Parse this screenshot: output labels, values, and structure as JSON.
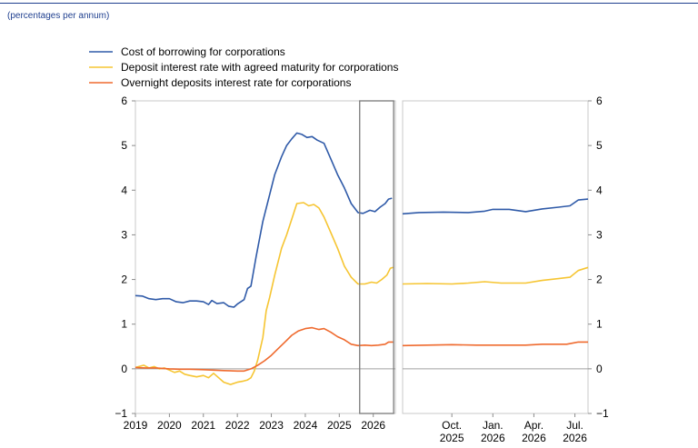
{
  "subtitle": "(percentages per annum)",
  "chart_data": {
    "type": "line",
    "ylim": [
      -1,
      6
    ],
    "yticks": [
      "−1",
      "0",
      "1",
      "2",
      "3",
      "4",
      "5",
      "6"
    ],
    "grid": false,
    "legend_placement": "top-left",
    "colors": {
      "borrowing": "#2f5aa8",
      "deposit": "#f6c532",
      "overnight": "#ef6a2e",
      "axis": "#8c8c8c"
    },
    "left_panel": {
      "x_range": [
        2019.0,
        2026.65
      ],
      "xticks": [
        "2019",
        "2020",
        "2021",
        "2022",
        "2023",
        "2024",
        "2025",
        "2026"
      ],
      "highlight_box": {
        "x_from": 2025.6,
        "x_to": 2026.6,
        "y_from": -1,
        "y_to": 6
      },
      "series": [
        {
          "name": "Cost of borrowing for corporations",
          "color": "#2f5aa8",
          "points": [
            [
              2019.0,
              1.64
            ],
            [
              2019.2,
              1.63
            ],
            [
              2019.4,
              1.57
            ],
            [
              2019.6,
              1.55
            ],
            [
              2019.8,
              1.57
            ],
            [
              2020.0,
              1.57
            ],
            [
              2020.2,
              1.5
            ],
            [
              2020.4,
              1.48
            ],
            [
              2020.6,
              1.52
            ],
            [
              2020.8,
              1.52
            ],
            [
              2021.0,
              1.5
            ],
            [
              2021.15,
              1.44
            ],
            [
              2021.25,
              1.53
            ],
            [
              2021.4,
              1.46
            ],
            [
              2021.6,
              1.48
            ],
            [
              2021.75,
              1.4
            ],
            [
              2021.9,
              1.38
            ],
            [
              2022.0,
              1.45
            ],
            [
              2022.2,
              1.55
            ],
            [
              2022.3,
              1.8
            ],
            [
              2022.4,
              1.85
            ],
            [
              2022.55,
              2.5
            ],
            [
              2022.75,
              3.3
            ],
            [
              2022.95,
              3.9
            ],
            [
              2023.1,
              4.35
            ],
            [
              2023.3,
              4.75
            ],
            [
              2023.45,
              5.0
            ],
            [
              2023.6,
              5.15
            ],
            [
              2023.75,
              5.28
            ],
            [
              2023.9,
              5.25
            ],
            [
              2024.05,
              5.18
            ],
            [
              2024.2,
              5.2
            ],
            [
              2024.35,
              5.12
            ],
            [
              2024.55,
              5.05
            ],
            [
              2024.75,
              4.7
            ],
            [
              2024.95,
              4.35
            ],
            [
              2025.15,
              4.05
            ],
            [
              2025.35,
              3.7
            ],
            [
              2025.55,
              3.5
            ],
            [
              2025.7,
              3.48
            ],
            [
              2025.9,
              3.55
            ],
            [
              2026.05,
              3.52
            ],
            [
              2026.2,
              3.62
            ],
            [
              2026.35,
              3.7
            ],
            [
              2026.45,
              3.8
            ],
            [
              2026.55,
              3.82
            ]
          ]
        },
        {
          "name": "Deposit interest rate with agreed maturity for corporations",
          "color": "#f6c532",
          "points": [
            [
              2019.0,
              0.03
            ],
            [
              2019.1,
              0.05
            ],
            [
              2019.25,
              0.08
            ],
            [
              2019.4,
              0.02
            ],
            [
              2019.55,
              0.05
            ],
            [
              2019.7,
              0.0
            ],
            [
              2019.85,
              0.02
            ],
            [
              2020.0,
              -0.03
            ],
            [
              2020.15,
              -0.08
            ],
            [
              2020.3,
              -0.05
            ],
            [
              2020.45,
              -0.12
            ],
            [
              2020.6,
              -0.15
            ],
            [
              2020.8,
              -0.18
            ],
            [
              2021.0,
              -0.15
            ],
            [
              2021.15,
              -0.2
            ],
            [
              2021.3,
              -0.1
            ],
            [
              2021.45,
              -0.2
            ],
            [
              2021.6,
              -0.3
            ],
            [
              2021.8,
              -0.35
            ],
            [
              2022.0,
              -0.3
            ],
            [
              2022.15,
              -0.28
            ],
            [
              2022.3,
              -0.25
            ],
            [
              2022.4,
              -0.2
            ],
            [
              2022.5,
              -0.05
            ],
            [
              2022.6,
              0.2
            ],
            [
              2022.75,
              0.7
            ],
            [
              2022.85,
              1.3
            ],
            [
              2022.95,
              1.6
            ],
            [
              2023.1,
              2.1
            ],
            [
              2023.3,
              2.7
            ],
            [
              2023.45,
              3.0
            ],
            [
              2023.6,
              3.35
            ],
            [
              2023.75,
              3.7
            ],
            [
              2023.95,
              3.72
            ],
            [
              2024.1,
              3.65
            ],
            [
              2024.25,
              3.68
            ],
            [
              2024.4,
              3.6
            ],
            [
              2024.55,
              3.4
            ],
            [
              2024.75,
              3.05
            ],
            [
              2024.95,
              2.7
            ],
            [
              2025.15,
              2.3
            ],
            [
              2025.35,
              2.05
            ],
            [
              2025.55,
              1.9
            ],
            [
              2025.75,
              1.9
            ],
            [
              2025.95,
              1.94
            ],
            [
              2026.1,
              1.92
            ],
            [
              2026.25,
              2.0
            ],
            [
              2026.4,
              2.1
            ],
            [
              2026.5,
              2.25
            ],
            [
              2026.58,
              2.27
            ]
          ]
        },
        {
          "name": "Overnight deposits interest rate for corporations",
          "color": "#ef6a2e",
          "points": [
            [
              2019.0,
              0.03
            ],
            [
              2019.3,
              0.02
            ],
            [
              2019.6,
              0.02
            ],
            [
              2020.0,
              0.0
            ],
            [
              2020.3,
              -0.01
            ],
            [
              2020.6,
              -0.01
            ],
            [
              2021.0,
              -0.02
            ],
            [
              2021.3,
              -0.03
            ],
            [
              2021.6,
              -0.04
            ],
            [
              2022.0,
              -0.05
            ],
            [
              2022.2,
              -0.05
            ],
            [
              2022.4,
              0.0
            ],
            [
              2022.6,
              0.08
            ],
            [
              2022.8,
              0.18
            ],
            [
              2023.0,
              0.3
            ],
            [
              2023.2,
              0.45
            ],
            [
              2023.4,
              0.6
            ],
            [
              2023.6,
              0.75
            ],
            [
              2023.8,
              0.85
            ],
            [
              2024.0,
              0.9
            ],
            [
              2024.2,
              0.92
            ],
            [
              2024.4,
              0.88
            ],
            [
              2024.55,
              0.9
            ],
            [
              2024.75,
              0.82
            ],
            [
              2024.95,
              0.72
            ],
            [
              2025.15,
              0.65
            ],
            [
              2025.35,
              0.55
            ],
            [
              2025.55,
              0.52
            ],
            [
              2025.75,
              0.53
            ],
            [
              2025.95,
              0.52
            ],
            [
              2026.15,
              0.53
            ],
            [
              2026.35,
              0.55
            ],
            [
              2026.45,
              0.6
            ],
            [
              2026.58,
              0.6
            ]
          ]
        }
      ]
    },
    "right_panel": {
      "x_range": [
        2025.45,
        2026.58
      ],
      "xticks": [
        {
          "at": 2025.75,
          "line1": "Oct.",
          "line2": "2025"
        },
        {
          "at": 2026.0,
          "line1": "Jan.",
          "line2": "2026"
        },
        {
          "at": 2026.25,
          "line1": "Apr.",
          "line2": "2026"
        },
        {
          "at": 2026.5,
          "line1": "Jul.",
          "line2": "2026"
        }
      ],
      "series": [
        {
          "name": "Cost of borrowing for corporations",
          "color": "#2f5aa8",
          "points": [
            [
              2025.45,
              3.47
            ],
            [
              2025.55,
              3.5
            ],
            [
              2025.7,
              3.51
            ],
            [
              2025.85,
              3.5
            ],
            [
              2025.95,
              3.53
            ],
            [
              2026.0,
              3.57
            ],
            [
              2026.1,
              3.57
            ],
            [
              2026.2,
              3.52
            ],
            [
              2026.3,
              3.58
            ],
            [
              2026.4,
              3.62
            ],
            [
              2026.47,
              3.65
            ],
            [
              2026.52,
              3.78
            ],
            [
              2026.58,
              3.8
            ]
          ]
        },
        {
          "name": "Deposit interest rate with agreed maturity for corporations",
          "color": "#f6c532",
          "points": [
            [
              2025.45,
              1.9
            ],
            [
              2025.6,
              1.91
            ],
            [
              2025.75,
              1.9
            ],
            [
              2025.85,
              1.92
            ],
            [
              2025.95,
              1.95
            ],
            [
              2026.05,
              1.92
            ],
            [
              2026.2,
              1.92
            ],
            [
              2026.3,
              1.98
            ],
            [
              2026.4,
              2.02
            ],
            [
              2026.47,
              2.05
            ],
            [
              2026.52,
              2.2
            ],
            [
              2026.58,
              2.27
            ]
          ]
        },
        {
          "name": "Overnight deposits interest rate for corporations",
          "color": "#ef6a2e",
          "points": [
            [
              2025.45,
              0.52
            ],
            [
              2025.6,
              0.53
            ],
            [
              2025.75,
              0.54
            ],
            [
              2025.9,
              0.53
            ],
            [
              2026.05,
              0.53
            ],
            [
              2026.2,
              0.53
            ],
            [
              2026.3,
              0.55
            ],
            [
              2026.45,
              0.55
            ],
            [
              2026.52,
              0.6
            ],
            [
              2026.58,
              0.6
            ]
          ]
        }
      ]
    }
  }
}
